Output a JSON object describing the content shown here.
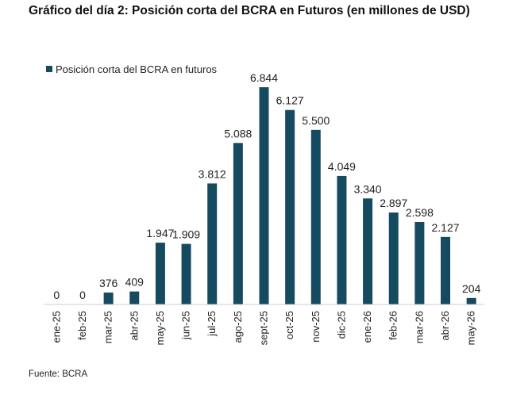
{
  "title": "Gráfico del día 2: Posición corta del BCRA en Futuros (en millones de USD)",
  "source": "Fuente: BCRA",
  "colors": {
    "bar": "#164a5e",
    "axis": "#cfcfcf",
    "text": "#222222"
  },
  "chart_data": {
    "type": "bar",
    "title": "Gráfico del día 2: Posición corta del BCRA en Futuros (en millones de USD)",
    "xlabel": "",
    "ylabel": "",
    "ylim": [
      0,
      7500
    ],
    "grid": false,
    "legend_position": "top-left",
    "categories": [
      "ene-25",
      "feb-25",
      "mar-25",
      "abr-25",
      "may-25",
      "jun-25",
      "jul-25",
      "ago-25",
      "sept-25",
      "oct-25",
      "nov-25",
      "dic-25",
      "ene-26",
      "feb-26",
      "mar-26",
      "abr-26",
      "may-26"
    ],
    "series": [
      {
        "name": "Posición corta del BCRA en futuros",
        "color": "#164a5e",
        "values": [
          0,
          0,
          376,
          409,
          1947,
          1909,
          3812,
          5088,
          6844,
          6127,
          5500,
          4049,
          3340,
          2897,
          2598,
          2127,
          204
        ],
        "labels": [
          "0",
          "0",
          "376",
          "409",
          "1.947",
          "1.909",
          "3.812",
          "5.088",
          "6.844",
          "6.127",
          "5.500",
          "4.049",
          "3.340",
          "2.897",
          "2.598",
          "2.127",
          "204"
        ]
      }
    ]
  }
}
